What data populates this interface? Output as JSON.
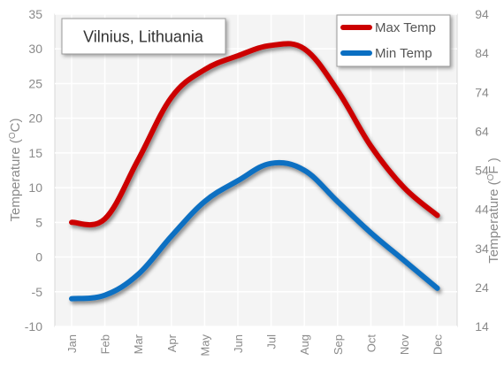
{
  "chart_data": {
    "type": "line",
    "title": "Vilnius, Lithuania",
    "categories": [
      "Jan",
      "Feb",
      "Mar",
      "Apr",
      "May",
      "Jun",
      "Jul",
      "Aug",
      "Sep",
      "Oct",
      "Nov",
      "Dec"
    ],
    "series": [
      {
        "name": "Max Temp",
        "color": "#cc0000",
        "values": [
          5,
          5.5,
          14,
          23,
          27,
          29,
          30.5,
          30,
          24,
          16,
          10,
          6
        ]
      },
      {
        "name": "Min Temp",
        "color": "#0a6fc2",
        "values": [
          -6,
          -5.5,
          -2.5,
          3,
          8,
          11,
          13.5,
          12.5,
          8,
          3.5,
          -0.5,
          -4.5
        ]
      }
    ],
    "y_left": {
      "label_prefix": "Temperature (",
      "label_unit_sup": "O",
      "label_unit": "C",
      "label_suffix": ")",
      "min": -10,
      "max": 35,
      "ticks": [
        "-10",
        "-5",
        "0",
        "5",
        "10",
        "15",
        "20",
        "25",
        "30",
        "35"
      ]
    },
    "y_right": {
      "label_prefix": "Temperature (",
      "label_unit_sup": "O",
      "label_unit": "F",
      "label_suffix": " )",
      "ticks": [
        "14",
        "24",
        "34",
        "44",
        "54",
        "64",
        "74",
        "84",
        "94"
      ]
    },
    "grid": true,
    "legend_position": "top-right",
    "colors": {
      "plot_bg": "#f4f4f4",
      "grid": "#ffffff",
      "tick_text": "#8a8a8a",
      "max_line": "#cc0000",
      "min_line": "#0a6fc2"
    }
  }
}
